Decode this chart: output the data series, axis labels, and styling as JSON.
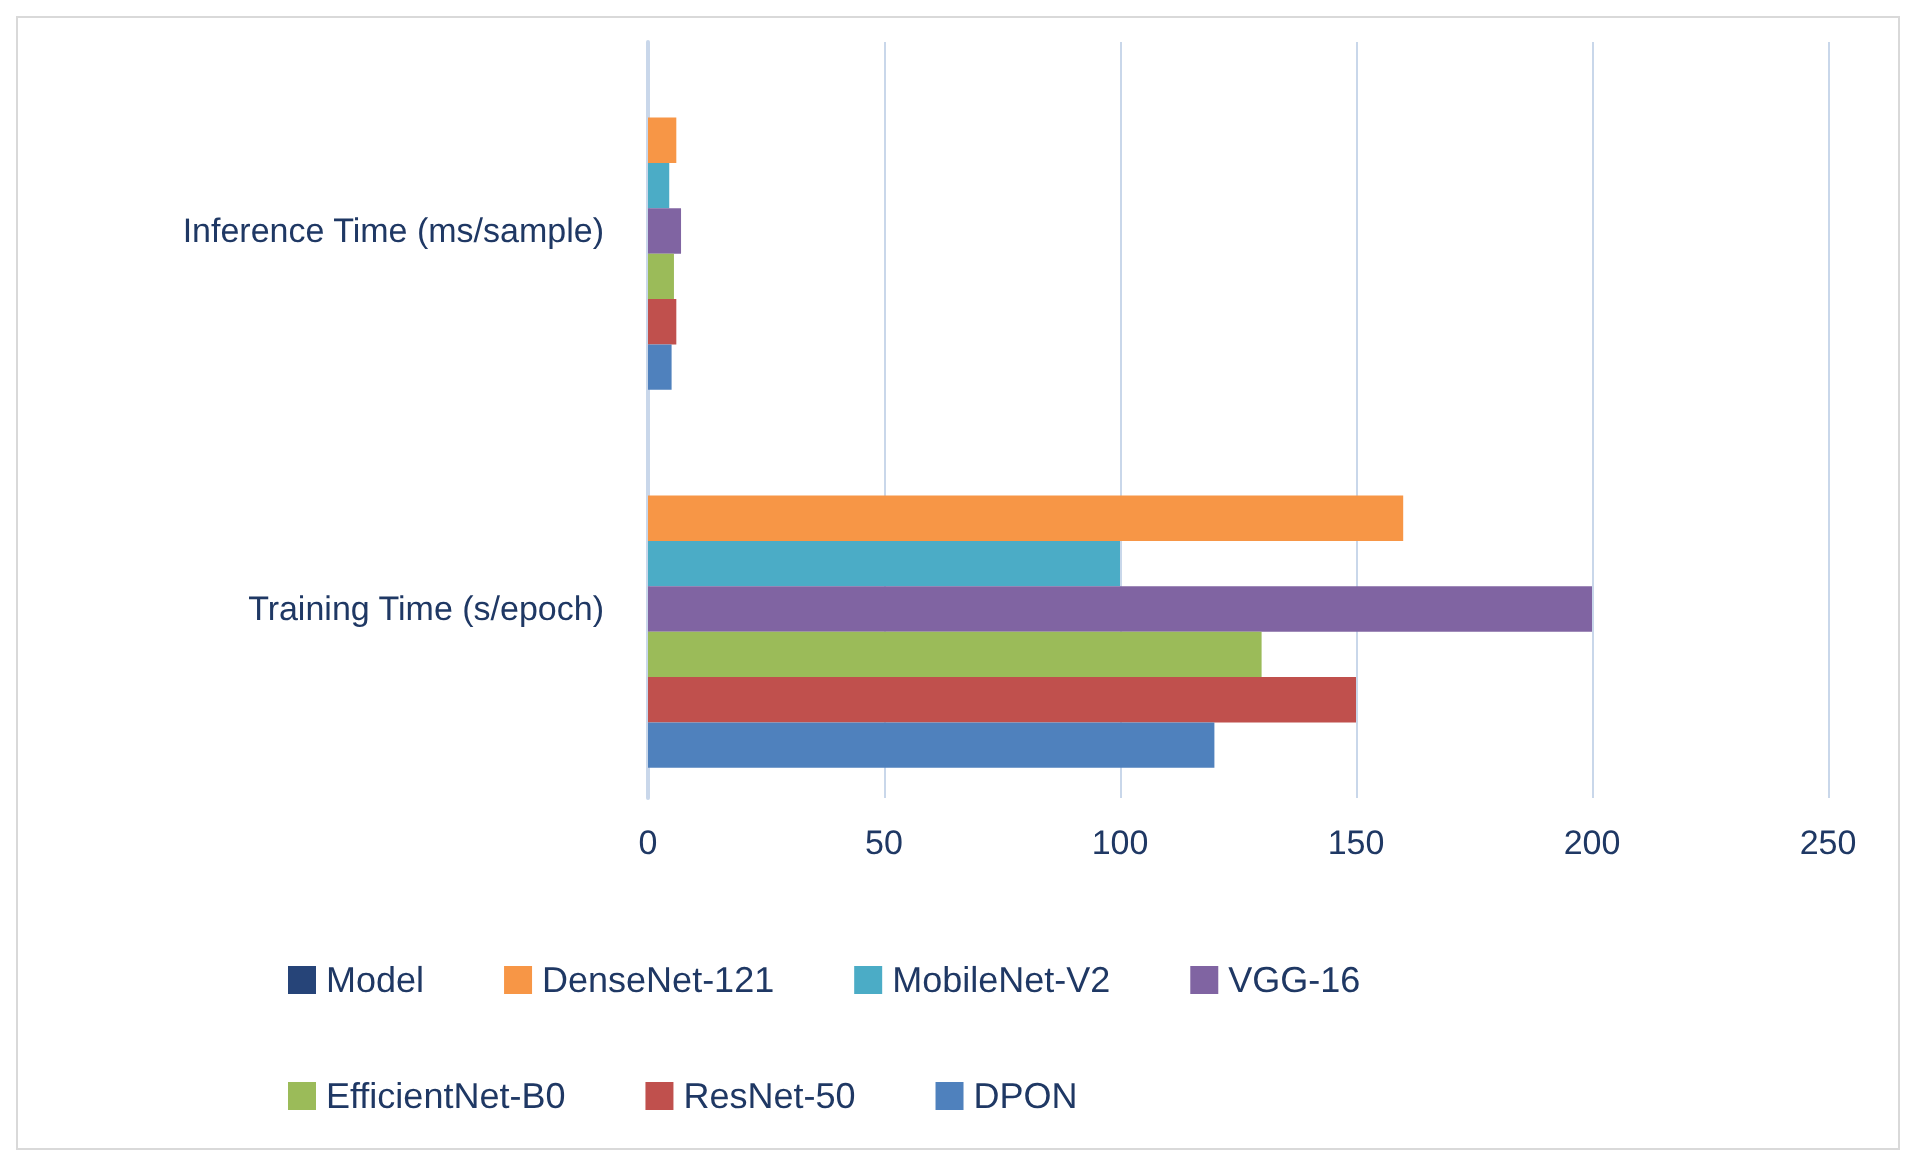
{
  "chart_data": {
    "type": "bar",
    "orientation": "horizontal",
    "categories": [
      "Inference Time (ms/sample)",
      "Training Time (s/epoch)"
    ],
    "series": [
      {
        "name": "Model",
        "color": "#264478",
        "values": [
          null,
          null
        ]
      },
      {
        "name": "DenseNet-121",
        "color": "#f79646",
        "values": [
          6,
          160
        ]
      },
      {
        "name": "MobileNet-V2",
        "color": "#4bacc6",
        "values": [
          4.5,
          100
        ]
      },
      {
        "name": "VGG-16",
        "color": "#8064a2",
        "values": [
          7,
          200
        ]
      },
      {
        "name": "EfficientNet-B0",
        "color": "#9bbb59",
        "values": [
          5.5,
          130
        ]
      },
      {
        "name": "ResNet-50",
        "color": "#c0504d",
        "values": [
          6,
          150
        ]
      },
      {
        "name": "DPON",
        "color": "#4f81bd",
        "values": [
          5,
          120
        ]
      }
    ],
    "xlim": [
      0,
      250
    ],
    "xticks": [
      0,
      50,
      100,
      150,
      200,
      250
    ],
    "grid": "x",
    "legend": "bottom"
  }
}
